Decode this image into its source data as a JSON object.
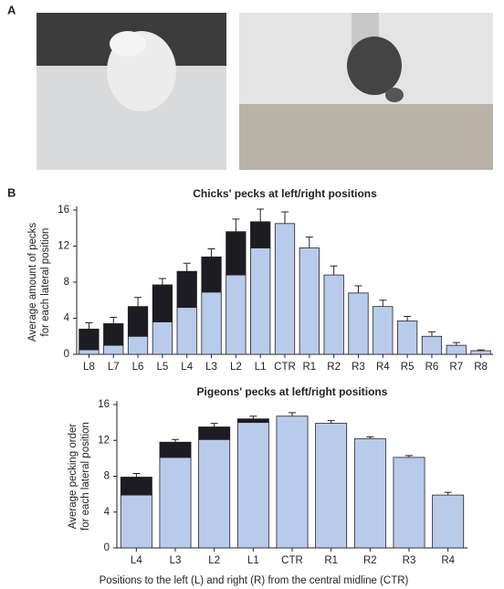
{
  "panel_labels": [
    "A",
    "B"
  ],
  "chart_data": [
    {
      "type": "bar",
      "stacked": true,
      "title": "Chicks' pecks at left/right positions",
      "y_label": [
        "Average amount of pecks",
        "for each lateral position"
      ],
      "categories": [
        "L8",
        "L7",
        "L6",
        "L5",
        "L4",
        "L3",
        "L2",
        "L1",
        "CTR",
        "R1",
        "R2",
        "R3",
        "R4",
        "R5",
        "R6",
        "R7",
        "R8"
      ],
      "series": [
        {
          "color": "#b9cbeb",
          "values": [
            0.5,
            1.0,
            2.0,
            3.6,
            5.2,
            6.9,
            8.8,
            11.8,
            14.5,
            11.8,
            8.8,
            6.8,
            5.3,
            3.7,
            2.0,
            1.0,
            0.4
          ]
        },
        {
          "color": "#1c1c22",
          "values": [
            2.3,
            2.4,
            3.3,
            4.1,
            4.0,
            3.9,
            4.8,
            2.9,
            null,
            null,
            null,
            null,
            null,
            null,
            null,
            null,
            null
          ]
        }
      ],
      "errors": [
        0.7,
        0.7,
        1.0,
        0.7,
        0.9,
        0.9,
        1.4,
        1.4,
        1.3,
        1.2,
        1.0,
        0.8,
        0.7,
        0.5,
        0.5,
        0.3,
        0.1
      ],
      "ylim": [
        0,
        16
      ],
      "yticks": [
        0,
        4,
        8,
        12,
        16
      ]
    },
    {
      "type": "bar",
      "stacked": true,
      "title": "Pigeons' pecks at left/right positions",
      "y_label": [
        "Average pecking order",
        "for each lateral position"
      ],
      "x_label": "Positions to the left (L) and right (R) from the central midline (CTR)",
      "categories": [
        "L4",
        "L3",
        "L2",
        "L1",
        "CTR",
        "R1",
        "R2",
        "R3",
        "R4"
      ],
      "series": [
        {
          "color": "#b9cbeb",
          "values": [
            5.9,
            10.1,
            12.1,
            14.0,
            14.7,
            13.9,
            12.2,
            10.1,
            5.9
          ]
        },
        {
          "color": "#1c1c22",
          "values": [
            2.0,
            1.7,
            1.4,
            0.4,
            null,
            null,
            null,
            null,
            null
          ]
        }
      ],
      "errors": [
        0.4,
        0.3,
        0.4,
        0.3,
        0.4,
        0.3,
        0.2,
        0.2,
        0.3
      ],
      "ylim": [
        0,
        16
      ],
      "yticks": [
        0,
        4,
        8,
        12,
        16
      ]
    }
  ]
}
